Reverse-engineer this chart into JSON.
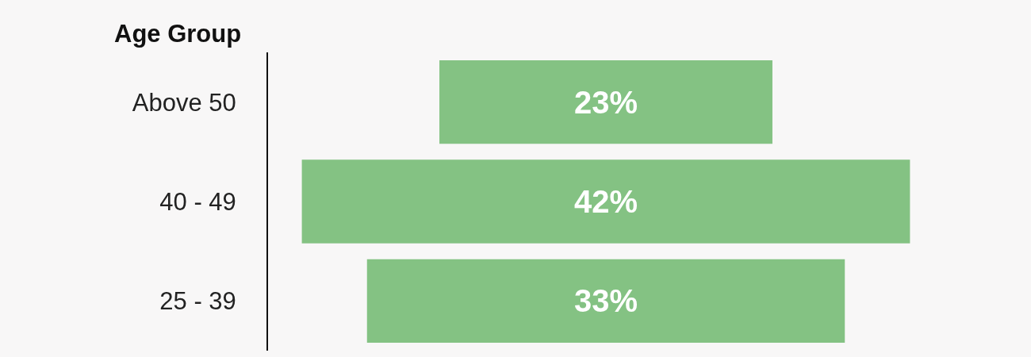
{
  "chart_data": {
    "type": "other",
    "ylabel": "Age Group",
    "categories": [
      "Above 50",
      "40 - 49",
      "25 - 39"
    ],
    "values": [
      23,
      42,
      33
    ],
    "value_labels": [
      "23%",
      "42%",
      "33%"
    ],
    "color": "#84c283"
  }
}
